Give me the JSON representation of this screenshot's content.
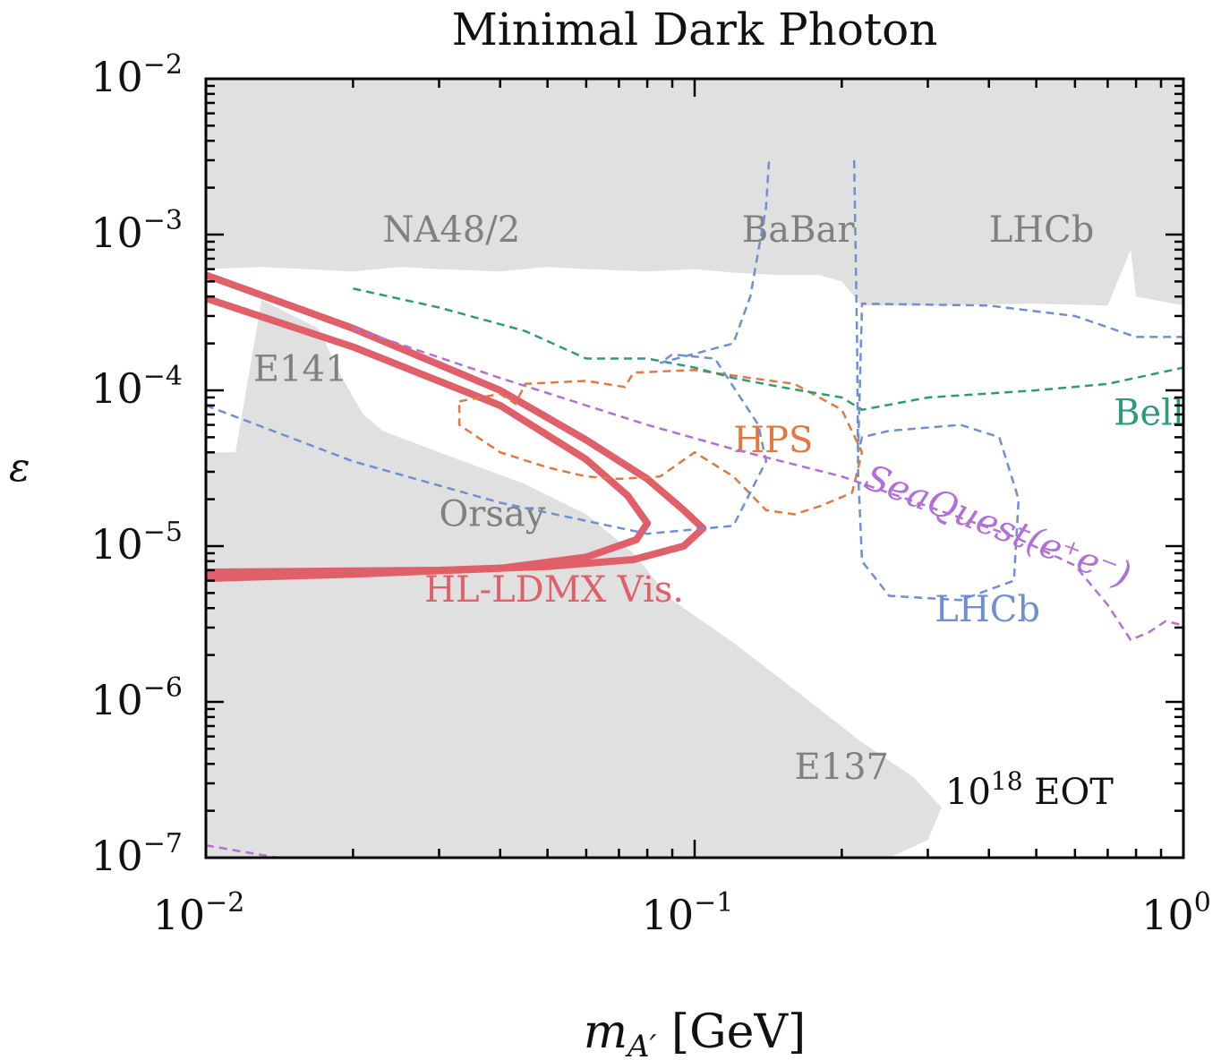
{
  "chart_data": {
    "type": "area",
    "title": "Minimal Dark Photon",
    "xlabel": "m_{A'} [GeV]",
    "ylabel": "ε",
    "x_scale": "log",
    "y_scale": "log",
    "xlim": [
      0.01,
      1.0
    ],
    "ylim": [
      1e-07,
      0.01
    ],
    "x_ticks": [
      {
        "value": 0.01,
        "base": "10",
        "exp": "−2"
      },
      {
        "value": 0.1,
        "base": "10",
        "exp": "−1"
      },
      {
        "value": 1.0,
        "base": "10",
        "exp": "0"
      }
    ],
    "y_ticks": [
      {
        "value": 0.01,
        "base": "10",
        "exp": "−2"
      },
      {
        "value": 0.001,
        "base": "10",
        "exp": "−3"
      },
      {
        "value": 0.0001,
        "base": "10",
        "exp": "−4"
      },
      {
        "value": 1e-05,
        "base": "10",
        "exp": "−5"
      },
      {
        "value": 1e-06,
        "base": "10",
        "exp": "−6"
      },
      {
        "value": 1e-07,
        "base": "10",
        "exp": "−7"
      }
    ],
    "colors": {
      "excluded": "#e0e0e0",
      "ldmx": "#e0606a",
      "hps": "#e07840",
      "belle": "#2e9a78",
      "lhcb": "#6f8fd0",
      "seaquest": "#b070d8",
      "label_gray": "#808080"
    },
    "exclusion_regions": [
      {
        "name": "NA48/2 / BaBar / LHCb (upper)",
        "points": [
          [
            0.01,
            0.0006
          ],
          [
            0.013,
            0.00062
          ],
          [
            0.016,
            0.0006
          ],
          [
            0.02,
            0.00058
          ],
          [
            0.025,
            0.00062
          ],
          [
            0.03,
            0.0006
          ],
          [
            0.04,
            0.00058
          ],
          [
            0.05,
            0.00062
          ],
          [
            0.06,
            0.0006
          ],
          [
            0.08,
            0.00058
          ],
          [
            0.1,
            0.0006
          ],
          [
            0.12,
            0.00057
          ],
          [
            0.15,
            0.00055
          ],
          [
            0.18,
            0.00055
          ],
          [
            0.2,
            0.0005
          ],
          [
            0.22,
            0.00035
          ],
          [
            0.3,
            0.00035
          ],
          [
            0.5,
            0.00036
          ],
          [
            0.7,
            0.00035
          ],
          [
            0.78,
            0.0008
          ],
          [
            0.8,
            0.0004
          ],
          [
            1.0,
            0.00035
          ],
          [
            1.0,
            0.01
          ],
          [
            0.01,
            0.01
          ]
        ]
      },
      {
        "name": "E141 / Orsay / E137 (lower)",
        "points": [
          [
            0.01,
            4e-05
          ],
          [
            0.0115,
            4e-05
          ],
          [
            0.013,
            0.00038
          ],
          [
            0.017,
            0.00025
          ],
          [
            0.019,
            0.00012
          ],
          [
            0.021,
            7e-05
          ],
          [
            0.023,
            5.5e-05
          ],
          [
            0.03,
            4e-05
          ],
          [
            0.045,
            2.5e-05
          ],
          [
            0.06,
            1.6e-05
          ],
          [
            0.075,
            9e-06
          ],
          [
            0.085,
            5.5e-06
          ],
          [
            0.09,
            4.5e-06
          ],
          [
            0.12,
            2.4e-06
          ],
          [
            0.16,
            1.2e-06
          ],
          [
            0.22,
            5.5e-07
          ],
          [
            0.28,
            3.3e-07
          ],
          [
            0.32,
            2.1e-07
          ],
          [
            0.3,
            1.3e-07
          ],
          [
            0.25,
            1e-07
          ],
          [
            0.01,
            1e-07
          ]
        ]
      }
    ],
    "series": [
      {
        "name": "HL-LDMX Vis. (outer)",
        "style": "thick-solid",
        "color_key": "ldmx",
        "points": [
          [
            0.01,
            0.00055
          ],
          [
            0.02,
            0.00025
          ],
          [
            0.04,
            0.0001
          ],
          [
            0.06,
            4.8e-05
          ],
          [
            0.08,
            2.7e-05
          ],
          [
            0.095,
            1.7e-05
          ],
          [
            0.104,
            1.3e-05
          ],
          [
            0.095,
            1e-05
          ],
          [
            0.075,
            8.2e-06
          ],
          [
            0.05,
            7.4e-06
          ],
          [
            0.03,
            7e-06
          ],
          [
            0.01,
            6.8e-06
          ]
        ]
      },
      {
        "name": "HL-LDMX Vis. (inner)",
        "style": "thick-solid",
        "color_key": "ldmx",
        "points": [
          [
            0.01,
            0.00039
          ],
          [
            0.02,
            0.00019
          ],
          [
            0.04,
            8e-05
          ],
          [
            0.06,
            3.6e-05
          ],
          [
            0.073,
            2.1e-05
          ],
          [
            0.08,
            1.4e-05
          ],
          [
            0.076,
            1.1e-05
          ],
          [
            0.06,
            8.5e-06
          ],
          [
            0.04,
            7.2e-06
          ],
          [
            0.02,
            6.6e-06
          ],
          [
            0.01,
            6.2e-06
          ]
        ]
      },
      {
        "name": "HPS",
        "style": "dashed",
        "color_key": "hps",
        "points": [
          [
            0.033,
            8.5e-05
          ],
          [
            0.04,
            9.5e-05
          ],
          [
            0.043,
            8.2e-05
          ],
          [
            0.045,
            0.00011
          ],
          [
            0.06,
            0.000115
          ],
          [
            0.072,
            0.000105
          ],
          [
            0.075,
            0.00013
          ],
          [
            0.1,
            0.000135
          ],
          [
            0.13,
            0.00012
          ],
          [
            0.16,
            0.00011
          ],
          [
            0.2,
            7.5e-05
          ],
          [
            0.22,
            4e-05
          ],
          [
            0.21,
            2.2e-05
          ],
          [
            0.18,
            1.8e-05
          ],
          [
            0.16,
            1.6e-05
          ],
          [
            0.14,
            1.7e-05
          ],
          [
            0.12,
            2.8e-05
          ],
          [
            0.1,
            4e-05
          ],
          [
            0.085,
            2.8e-05
          ],
          [
            0.07,
            2.7e-05
          ],
          [
            0.06,
            2.8e-05
          ],
          [
            0.05,
            3.2e-05
          ],
          [
            0.04,
            4e-05
          ],
          [
            0.033,
            6e-05
          ],
          [
            0.033,
            8.5e-05
          ]
        ]
      },
      {
        "name": "Belle II",
        "style": "dashed",
        "color_key": "belle",
        "points": [
          [
            0.02,
            0.00045
          ],
          [
            0.03,
            0.00034
          ],
          [
            0.045,
            0.00024
          ],
          [
            0.06,
            0.00016
          ],
          [
            0.08,
            0.00016
          ],
          [
            0.1,
            0.00014
          ],
          [
            0.12,
            0.00012
          ],
          [
            0.15,
            0.000105
          ],
          [
            0.2,
            9e-05
          ],
          [
            0.22,
            7.5e-05
          ],
          [
            0.3,
            9e-05
          ],
          [
            0.5,
            0.0001
          ],
          [
            0.7,
            0.00011
          ],
          [
            1.0,
            0.00014
          ]
        ]
      },
      {
        "name": "BaBar/Orsay (blue dashed)",
        "style": "dashed",
        "color_key": "lhcb",
        "points": [
          [
            0.01,
            8e-05
          ],
          [
            0.02,
            3.5e-05
          ],
          [
            0.04,
            1.9e-05
          ],
          [
            0.08,
            1.2e-05
          ],
          [
            0.12,
            1.35e-05
          ],
          [
            0.14,
            3.5e-05
          ],
          [
            0.135,
            6e-05
          ],
          [
            0.11,
            0.00016
          ],
          [
            0.09,
            0.00017
          ],
          [
            0.085,
            0.00015
          ],
          [
            0.12,
            0.0002
          ],
          [
            0.13,
            0.0004
          ],
          [
            0.14,
            0.0015
          ],
          [
            0.142,
            0.003
          ]
        ]
      },
      {
        "name": "LHCb (blue dashed)",
        "style": "dashed",
        "color_key": "lhcb",
        "points": [
          [
            0.212,
            0.003
          ],
          [
            0.215,
            0.0002
          ],
          [
            0.216,
            3e-05
          ],
          [
            0.22,
            8e-06
          ],
          [
            0.25,
            4.8e-06
          ],
          [
            0.35,
            4.5e-06
          ],
          [
            0.45,
            6e-06
          ],
          [
            0.46,
            2e-05
          ],
          [
            0.42,
            5e-05
          ],
          [
            0.35,
            6e-05
          ],
          [
            0.25,
            5.5e-05
          ],
          [
            0.22,
            5e-05
          ],
          [
            0.216,
            4e-05
          ],
          [
            0.22,
            0.00036
          ],
          [
            0.4,
            0.00035
          ],
          [
            0.6,
            0.0003
          ],
          [
            0.8,
            0.00022
          ],
          [
            1.0,
            0.00022
          ]
        ]
      },
      {
        "name": "SeaQuest(e+e-)",
        "style": "dashed",
        "color_key": "seaquest",
        "points": [
          [
            0.02,
            0.00025
          ],
          [
            0.04,
            0.00012
          ],
          [
            0.08,
            6e-05
          ],
          [
            0.12,
            4.2e-05
          ],
          [
            0.2,
            2.8e-05
          ],
          [
            0.3,
            1.8e-05
          ],
          [
            0.45,
            1.15e-05
          ],
          [
            0.6,
            7.5e-06
          ],
          [
            0.7,
            4.2e-06
          ],
          [
            0.78,
            2.5e-06
          ],
          [
            0.85,
            2.8e-06
          ],
          [
            0.92,
            3.3e-06
          ],
          [
            1.0,
            3.1e-06
          ]
        ]
      },
      {
        "name": "SeaQuest low tail",
        "style": "dashed",
        "color_key": "seaquest",
        "points": [
          [
            0.01,
            1.2e-07
          ],
          [
            0.014,
            1e-07
          ]
        ]
      }
    ],
    "annotations": [
      {
        "text": "NA48/2",
        "x": 0.023,
        "y": 0.0009,
        "color_key": "label_gray"
      },
      {
        "text": "BaBar",
        "x": 0.125,
        "y": 0.0009,
        "color_key": "label_gray"
      },
      {
        "text": "LHCb",
        "x": 0.4,
        "y": 0.0009,
        "color_key": "label_gray"
      },
      {
        "text": "E141",
        "x": 0.0125,
        "y": 0.000115,
        "color_key": "label_gray"
      },
      {
        "text": "Orsay",
        "x": 0.03,
        "y": 1.35e-05,
        "color_key": "label_gray"
      },
      {
        "text": "E137",
        "x": 0.16,
        "y": 3.2e-07,
        "color_key": "label_gray"
      },
      {
        "text": "HPS",
        "x": 0.12,
        "y": 4e-05,
        "color_key": "hps"
      },
      {
        "text": "Belle II",
        "x": 0.72,
        "y": 6e-05,
        "color_key": "belle"
      },
      {
        "text": "LHCb",
        "x": 0.31,
        "y": 3.3e-06,
        "color_key": "lhcb"
      },
      {
        "text": "HL-LDMX Vis.",
        "x": 0.028,
        "y": 4.4e-06,
        "color_key": "ldmx"
      }
    ],
    "seaquest_label": {
      "text": "SeaQuest(e⁺e⁻)",
      "x": 0.22,
      "y": 2.4e-05,
      "angle": 21,
      "color_key": "seaquest"
    },
    "eot_label": {
      "base": "10",
      "exp": "18",
      "text": " EOT"
    }
  }
}
